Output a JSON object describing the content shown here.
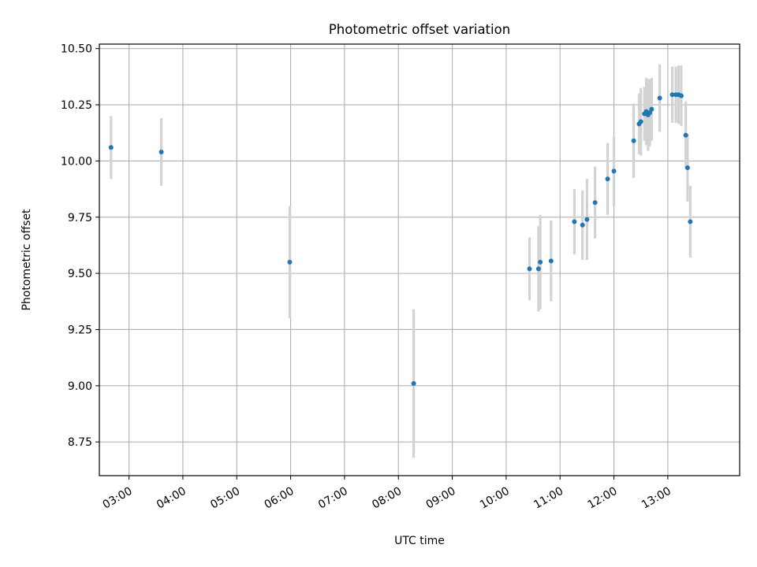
{
  "chart_data": {
    "type": "scatter",
    "title": "Photometric offset variation",
    "xlabel": "UTC time",
    "ylabel": "Photometric offset",
    "x_is_time": true,
    "xlim": [
      "02:27",
      "14:20"
    ],
    "ylim": [
      8.6,
      10.52
    ],
    "x_ticks": [
      "03:00",
      "04:00",
      "05:00",
      "06:00",
      "07:00",
      "08:00",
      "09:00",
      "10:00",
      "11:00",
      "12:00",
      "13:00"
    ],
    "y_ticks": [
      "8.75",
      "9.00",
      "9.25",
      "9.50",
      "9.75",
      "10.00",
      "10.25",
      "10.50"
    ],
    "grid": true,
    "marker_color": "#1f77b4",
    "errorbar_color": "#d3d3d3",
    "points": [
      {
        "x": "02:40",
        "y": 10.06,
        "err": 0.14
      },
      {
        "x": "03:36",
        "y": 10.04,
        "err": 0.15
      },
      {
        "x": "05:59",
        "y": 9.55,
        "err": 0.25
      },
      {
        "x": "08:17",
        "y": 9.01,
        "err": 0.33
      },
      {
        "x": "10:26",
        "y": 9.52,
        "err": 0.14
      },
      {
        "x": "10:36",
        "y": 9.52,
        "err": 0.19
      },
      {
        "x": "10:38",
        "y": 9.55,
        "err": 0.21
      },
      {
        "x": "10:50",
        "y": 9.555,
        "err": 0.18
      },
      {
        "x": "11:16",
        "y": 9.73,
        "err": 0.145
      },
      {
        "x": "11:25",
        "y": 9.715,
        "err": 0.155
      },
      {
        "x": "11:30",
        "y": 9.74,
        "err": 0.18
      },
      {
        "x": "11:39",
        "y": 9.815,
        "err": 0.16
      },
      {
        "x": "11:53",
        "y": 9.92,
        "err": 0.16
      },
      {
        "x": "12:00",
        "y": 9.955,
        "err": 0.155
      },
      {
        "x": "12:22",
        "y": 10.09,
        "err": 0.165
      },
      {
        "x": "12:28",
        "y": 10.165,
        "err": 0.135
      },
      {
        "x": "12:30",
        "y": 10.175,
        "err": 0.15
      },
      {
        "x": "12:34",
        "y": 10.21,
        "err": 0.12
      },
      {
        "x": "12:36",
        "y": 10.22,
        "err": 0.15
      },
      {
        "x": "12:38",
        "y": 10.205,
        "err": 0.16
      },
      {
        "x": "12:40",
        "y": 10.215,
        "err": 0.15
      },
      {
        "x": "12:42",
        "y": 10.23,
        "err": 0.14
      },
      {
        "x": "12:51",
        "y": 10.28,
        "err": 0.15
      },
      {
        "x": "13:05",
        "y": 10.295,
        "err": 0.125
      },
      {
        "x": "13:09",
        "y": 10.295,
        "err": 0.125
      },
      {
        "x": "13:12",
        "y": 10.295,
        "err": 0.13
      },
      {
        "x": "13:15",
        "y": 10.29,
        "err": 0.135
      },
      {
        "x": "13:20",
        "y": 10.115,
        "err": 0.15
      },
      {
        "x": "13:22",
        "y": 9.97,
        "err": 0.15
      },
      {
        "x": "13:25",
        "y": 9.73,
        "err": 0.16
      }
    ]
  }
}
